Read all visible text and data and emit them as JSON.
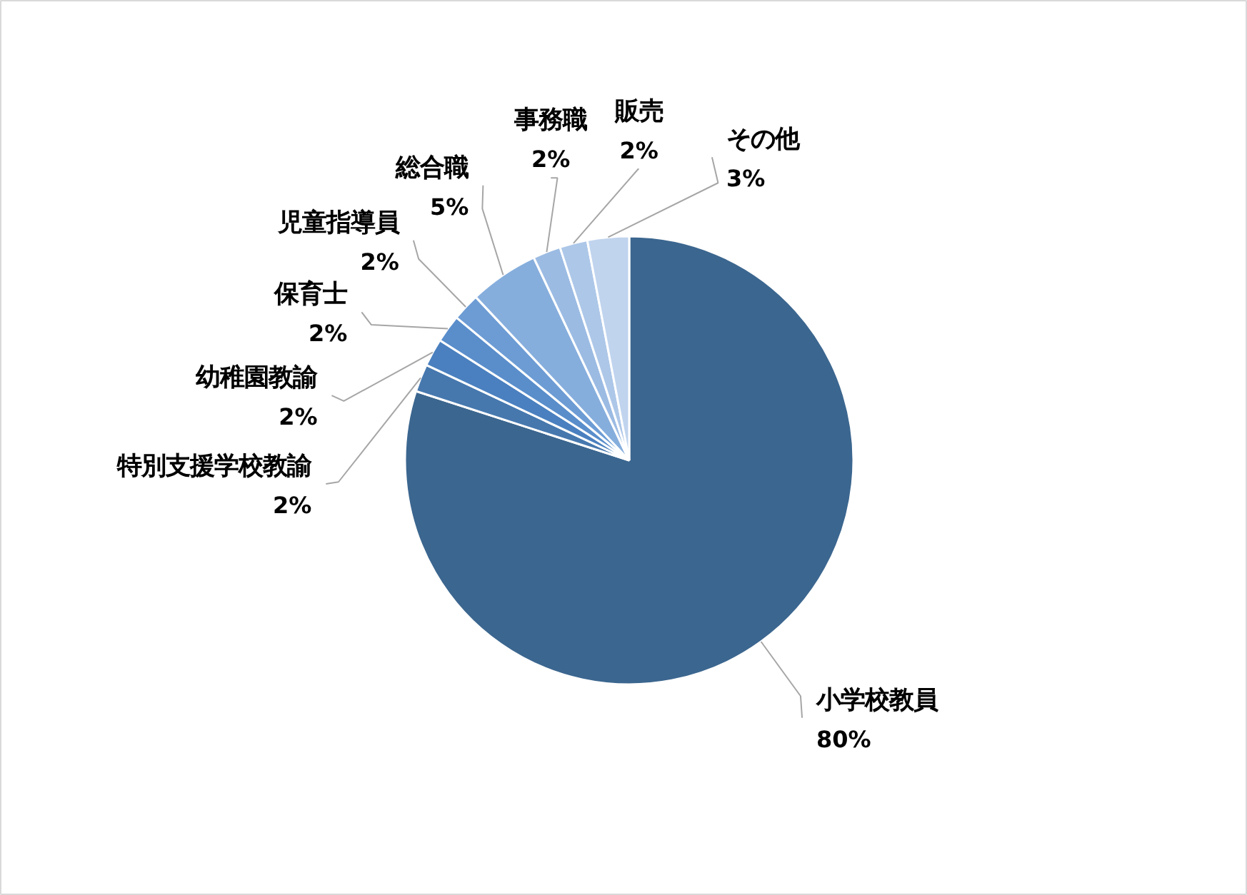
{
  "chart_data": {
    "type": "pie",
    "categories": [
      "小学校教員",
      "特別支援学校教諭",
      "幼稚園教諭",
      "保育士",
      "児童指導員",
      "総合職",
      "事務職",
      "販売",
      "その他"
    ],
    "values": [
      80,
      2,
      2,
      2,
      2,
      5,
      2,
      2,
      3
    ],
    "value_labels": [
      "80%",
      "2%",
      "2%",
      "2%",
      "2%",
      "5%",
      "2%",
      "2%",
      "3%"
    ],
    "colors": [
      "#3b668f",
      "#4678ae",
      "#4a80bf",
      "#5a8ecb",
      "#6d9cd4",
      "#86aedd",
      "#9bbbe3",
      "#adc7e8",
      "#c0d4ee"
    ]
  }
}
